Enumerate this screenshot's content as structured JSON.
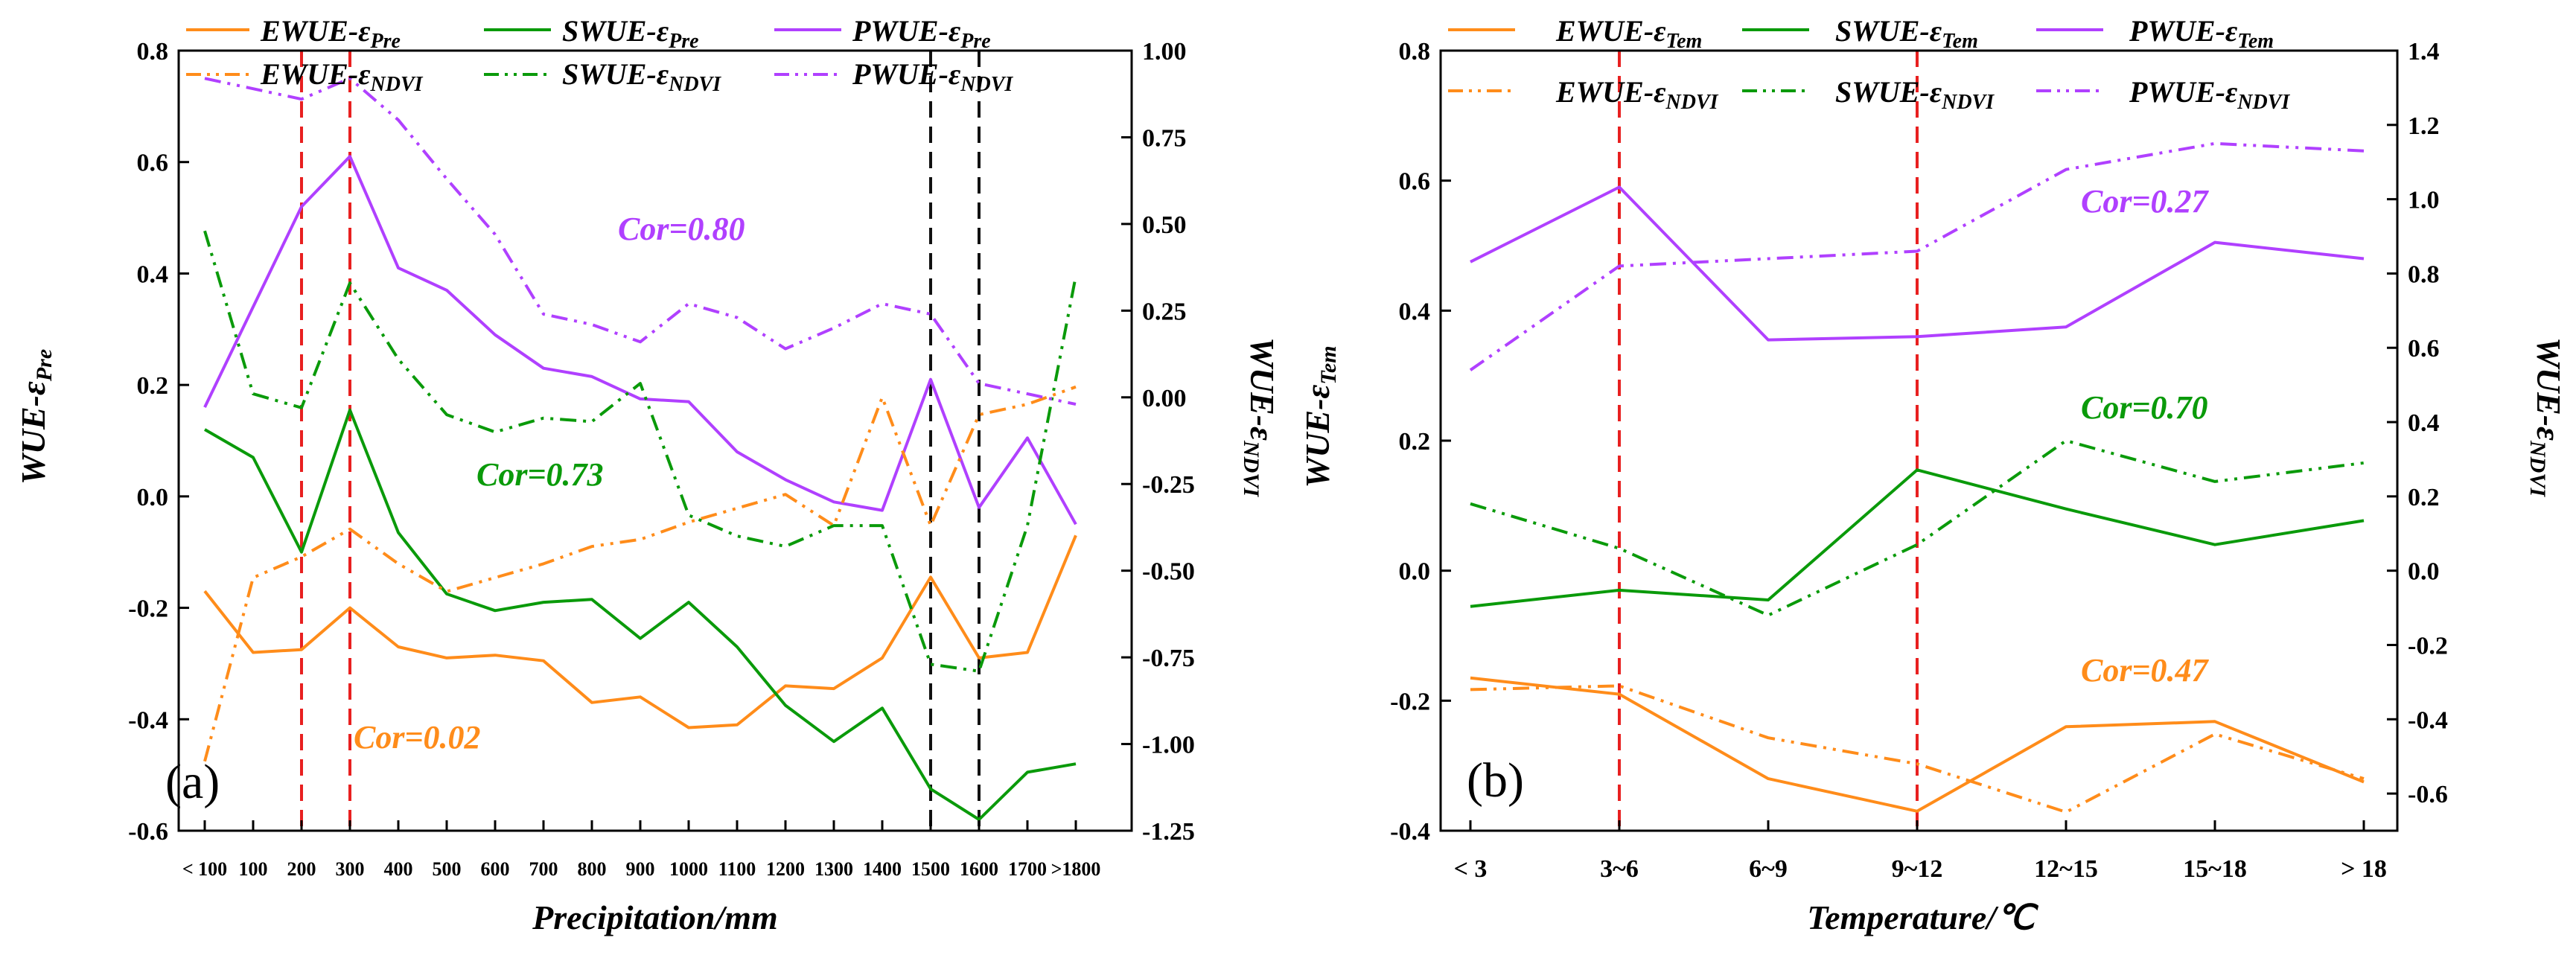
{
  "colors": {
    "orange": "#ff8c1a",
    "green": "#0a9a0a",
    "purple": "#b040ff",
    "red": "#e82020",
    "black": "#111111"
  },
  "chart_data": [
    {
      "type": "line",
      "panel_label": "(a)",
      "xlabel": "Precipitation/mm",
      "ylabel_left": {
        "main": "WUE-ε",
        "sub": "Pre"
      },
      "ylabel_right": {
        "main": "WUE-ε",
        "sub": "NDVI"
      },
      "categories": [
        "< 100",
        "100",
        "200",
        "300",
        "400",
        "500",
        "600",
        "700",
        "800",
        "900",
        "1000",
        "1100",
        "1200",
        "1300",
        "1400",
        "1500",
        "1600",
        "1700",
        ">1800"
      ],
      "ylim_left": [
        -0.6,
        0.8
      ],
      "yticks_left": [
        -0.6,
        -0.4,
        -0.2,
        0.0,
        0.2,
        0.4,
        0.6,
        0.8
      ],
      "ytick_labels_left": [
        "-0.6",
        "-0.4",
        "-0.2",
        "0.0",
        "0.2",
        "0.4",
        "0.6",
        "0.8"
      ],
      "ylim_right": [
        -1.25,
        1.0
      ],
      "yticks_right": [
        -1.25,
        -1.0,
        -0.75,
        -0.5,
        -0.25,
        0.0,
        0.25,
        0.5,
        0.75,
        1.0
      ],
      "ytick_labels_right": [
        "-1.25",
        "-1.00",
        "-0.75",
        "-0.50",
        "-0.25",
        "0.00",
        "0.25",
        "0.50",
        "0.75",
        "1.00"
      ],
      "vlines": [
        {
          "category": "200",
          "color": "red"
        },
        {
          "category": "300",
          "color": "red"
        },
        {
          "category": "1500",
          "color": "black"
        },
        {
          "category": "1600",
          "color": "black"
        }
      ],
      "series": [
        {
          "name": "EWUE-ε",
          "sub": "Pre",
          "color": "orange",
          "style": "solid",
          "axis": "left",
          "values": [
            -0.17,
            -0.28,
            -0.275,
            -0.2,
            -0.27,
            -0.29,
            -0.285,
            -0.295,
            -0.37,
            -0.36,
            -0.415,
            -0.41,
            -0.34,
            -0.345,
            -0.29,
            -0.145,
            -0.29,
            -0.28,
            -0.07
          ]
        },
        {
          "name": "SWUE-ε",
          "sub": "Pre",
          "color": "green",
          "style": "solid",
          "axis": "left",
          "values": [
            0.12,
            0.07,
            -0.1,
            0.155,
            -0.065,
            -0.175,
            -0.205,
            -0.19,
            -0.185,
            -0.255,
            -0.19,
            -0.27,
            -0.375,
            -0.44,
            -0.38,
            -0.525,
            -0.58,
            -0.495,
            -0.48
          ]
        },
        {
          "name": "PWUE-ε",
          "sub": "Pre",
          "color": "purple",
          "style": "solid",
          "axis": "left",
          "values": [
            0.16,
            0.34,
            0.52,
            0.61,
            0.41,
            0.37,
            0.29,
            0.23,
            0.215,
            0.175,
            0.17,
            0.08,
            0.03,
            -0.01,
            -0.025,
            0.21,
            -0.02,
            0.105,
            -0.05
          ]
        },
        {
          "name": "EWUE-ε",
          "sub": "NDVI",
          "color": "orange",
          "style": "dashdot",
          "axis": "right",
          "values": [
            -1.05,
            -0.52,
            -0.46,
            -0.38,
            -0.48,
            -0.56,
            -0.52,
            -0.48,
            -0.43,
            -0.41,
            -0.36,
            -0.32,
            -0.28,
            -0.37,
            0.0,
            -0.37,
            -0.05,
            -0.02,
            0.03
          ]
        },
        {
          "name": "SWUE-ε",
          "sub": "NDVI",
          "color": "green",
          "style": "dashdot",
          "axis": "right",
          "values": [
            0.48,
            0.01,
            -0.03,
            0.33,
            0.11,
            -0.05,
            -0.1,
            -0.06,
            -0.07,
            0.04,
            -0.34,
            -0.4,
            -0.43,
            -0.37,
            -0.37,
            -0.77,
            -0.79,
            -0.37,
            0.35
          ]
        },
        {
          "name": "PWUE-ε",
          "sub": "NDVI",
          "color": "purple",
          "style": "dashdot",
          "axis": "right",
          "values": [
            0.92,
            0.89,
            0.86,
            0.92,
            0.8,
            0.63,
            0.47,
            0.24,
            0.21,
            0.16,
            0.27,
            0.23,
            0.14,
            0.2,
            0.27,
            0.24,
            0.04,
            0.01,
            -0.02
          ]
        }
      ],
      "annotations": [
        {
          "text": "Cor=0.80",
          "color": "purple"
        },
        {
          "text": "Cor=0.73",
          "color": "green"
        },
        {
          "text": "Cor=0.02",
          "color": "orange"
        }
      ]
    },
    {
      "type": "line",
      "panel_label": "(b)",
      "xlabel": "Temperature/℃",
      "ylabel_left": {
        "main": "WUE-ε",
        "sub": "Tem"
      },
      "ylabel_right": {
        "main": "WUE-ε",
        "sub": "NDVI"
      },
      "categories": [
        "< 3",
        "3~6",
        "6~9",
        "9~12",
        "12~15",
        "15~18",
        "> 18"
      ],
      "ylim_left": [
        -0.4,
        0.8
      ],
      "yticks_left": [
        -0.4,
        -0.2,
        0.0,
        0.2,
        0.4,
        0.6,
        0.8
      ],
      "ytick_labels_left": [
        "-0.4",
        "-0.2",
        "0.0",
        "0.2",
        "0.4",
        "0.6",
        "0.8"
      ],
      "ylim_right": [
        -0.7,
        1.4
      ],
      "yticks_right": [
        -0.6,
        -0.4,
        -0.2,
        0.0,
        0.2,
        0.4,
        0.6,
        0.8,
        1.0,
        1.2,
        1.4
      ],
      "ytick_labels_right": [
        "-0.6",
        "-0.4",
        "-0.2",
        "0.0",
        "0.2",
        "0.4",
        "0.6",
        "0.8",
        "1.0",
        "1.2",
        "1.4"
      ],
      "vlines": [
        {
          "category": "3~6",
          "color": "red"
        },
        {
          "category": "9~12",
          "color": "red"
        }
      ],
      "series": [
        {
          "name": "EWUE-ε",
          "sub": "Tem",
          "color": "orange",
          "style": "solid",
          "axis": "left",
          "values": [
            -0.165,
            -0.19,
            -0.32,
            -0.37,
            -0.24,
            -0.232,
            -0.325
          ]
        },
        {
          "name": "SWUE-ε",
          "sub": "Tem",
          "color": "green",
          "style": "solid",
          "axis": "left",
          "values": [
            -0.055,
            -0.03,
            -0.045,
            0.155,
            0.095,
            0.04,
            0.077
          ]
        },
        {
          "name": "PWUE-ε",
          "sub": "Tem",
          "color": "purple",
          "style": "solid",
          "axis": "left",
          "values": [
            0.475,
            0.59,
            0.355,
            0.36,
            0.375,
            0.505,
            0.48
          ]
        },
        {
          "name": "EWUE-ε",
          "sub": "NDVI",
          "color": "orange",
          "style": "dashdot",
          "axis": "right",
          "values": [
            -0.32,
            -0.31,
            -0.45,
            -0.52,
            -0.65,
            -0.44,
            -0.56
          ]
        },
        {
          "name": "SWUE-ε",
          "sub": "NDVI",
          "color": "green",
          "style": "dashdot",
          "axis": "right",
          "values": [
            0.18,
            0.06,
            -0.12,
            0.07,
            0.35,
            0.24,
            0.29
          ]
        },
        {
          "name": "PWUE-ε",
          "sub": "NDVI",
          "color": "purple",
          "style": "dashdot",
          "axis": "right",
          "values": [
            0.54,
            0.82,
            0.84,
            0.86,
            1.08,
            1.15,
            1.13
          ]
        }
      ],
      "annotations": [
        {
          "text": "Cor=0.27",
          "color": "purple"
        },
        {
          "text": "Cor=0.70",
          "color": "green"
        },
        {
          "text": "Cor=0.47",
          "color": "orange"
        }
      ]
    }
  ]
}
